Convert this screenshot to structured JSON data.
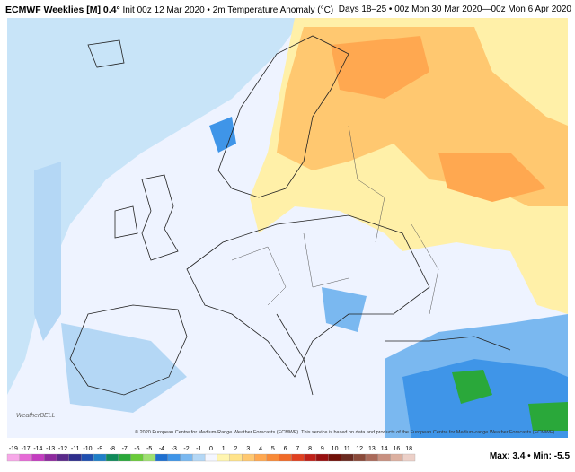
{
  "header": {
    "title": "ECMWF Weeklies [M] 0.4°",
    "init": "Init 00z 12 Mar 2020 • 2m Temperature Anomaly (°C)",
    "valid": "Days 18–25 • 00z Mon 30 Mar 2020—00z Mon 6 Apr 2020"
  },
  "map": {
    "copyright": "© 2020 European Centre for Medium-Range Weather Forecasts (ECMWF). This service is based on data and products of the European Centre for Medium-range Weather Forecasts (ECMWF).",
    "logo": "WeatherBELL"
  },
  "colorbar": {
    "labels": [
      -19,
      -17,
      -14,
      -13,
      -12,
      -11,
      -10,
      -9,
      -8,
      -7,
      -6,
      -5,
      -4,
      -3,
      -2,
      -1,
      0,
      1,
      2,
      3,
      4,
      5,
      6,
      7,
      8,
      9,
      10,
      11,
      12,
      13,
      14,
      16,
      18
    ],
    "colors": [
      "#f7a8e8",
      "#e66ad6",
      "#c43cc0",
      "#8e2a9e",
      "#5a2a8a",
      "#2e2e8c",
      "#1f4fb0",
      "#1f7fc8",
      "#0f8a5a",
      "#2aa83a",
      "#6acb3a",
      "#9ee070",
      "#1e6fd0",
      "#3f95e8",
      "#7ab8f0",
      "#b4d7f5",
      "#f4f6ff",
      "#fff5b0",
      "#ffe38a",
      "#ffc870",
      "#ffa850",
      "#f88a38",
      "#f06a28",
      "#e04020",
      "#c02018",
      "#981010",
      "#701008",
      "#6a2a20",
      "#8a4a3a",
      "#aa6a5a",
      "#c89080",
      "#dcb0a0",
      "#ecd0c8"
    ]
  },
  "stats": "Max: 3.4 • Min: -5.5"
}
